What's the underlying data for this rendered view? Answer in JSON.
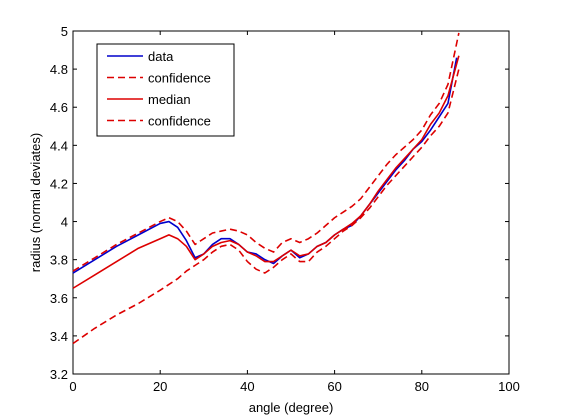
{
  "chart_data": {
    "type": "line",
    "title": "",
    "xlabel": "angle (degree)",
    "ylabel": "radius (normal deviates)",
    "xlim": [
      0,
      100
    ],
    "ylim": [
      3.2,
      5
    ],
    "xticks": [
      0,
      20,
      40,
      60,
      80,
      100
    ],
    "yticks": [
      3.2,
      3.4,
      3.6,
      3.8,
      4,
      4.2,
      4.4,
      4.6,
      4.8,
      5
    ],
    "xtick_labels": [
      "0",
      "20",
      "40",
      "60",
      "80",
      "100"
    ],
    "ytick_labels": [
      "3.2",
      "3.4",
      "3.6",
      "3.8",
      "4",
      "4.2",
      "4.4",
      "4.6",
      "4.8",
      "5"
    ],
    "grid": false,
    "legend_position": "top-left",
    "series": [
      {
        "name": "data",
        "color": "#0000cc",
        "style": "solid",
        "x": [
          0,
          5,
          10,
          15,
          20,
          22,
          24,
          26,
          28,
          30,
          32,
          34,
          36,
          38,
          40,
          42,
          44,
          46,
          48,
          50,
          52,
          54,
          56,
          58,
          60,
          62,
          64,
          66,
          68,
          70,
          72,
          74,
          76,
          78,
          80,
          82,
          84,
          86,
          88
        ],
        "y": [
          3.73,
          3.8,
          3.87,
          3.93,
          3.99,
          4.0,
          3.97,
          3.9,
          3.81,
          3.83,
          3.88,
          3.91,
          3.91,
          3.88,
          3.84,
          3.83,
          3.8,
          3.78,
          3.82,
          3.85,
          3.81,
          3.83,
          3.87,
          3.89,
          3.93,
          3.96,
          3.98,
          4.03,
          4.09,
          4.15,
          4.21,
          4.27,
          4.32,
          4.38,
          4.42,
          4.48,
          4.55,
          4.62,
          4.86
        ]
      },
      {
        "name": "confidence",
        "color": "#dd0000",
        "style": "dashed",
        "x": [
          0,
          5,
          10,
          15,
          20,
          22,
          24,
          26,
          28,
          30,
          32,
          34,
          36,
          38,
          40,
          42,
          44,
          46,
          48,
          50,
          52,
          54,
          56,
          58,
          60,
          62,
          64,
          66,
          68,
          70,
          72,
          74,
          76,
          78,
          80,
          82,
          84,
          86,
          88.5
        ],
        "y": [
          3.74,
          3.81,
          3.88,
          3.94,
          4.0,
          4.02,
          4.0,
          3.95,
          3.88,
          3.91,
          3.94,
          3.95,
          3.96,
          3.95,
          3.93,
          3.89,
          3.86,
          3.84,
          3.89,
          3.91,
          3.89,
          3.91,
          3.94,
          3.98,
          4.02,
          4.05,
          4.08,
          4.12,
          4.18,
          4.24,
          4.3,
          4.35,
          4.39,
          4.43,
          4.48,
          4.56,
          4.62,
          4.72,
          4.99
        ]
      },
      {
        "name": "median",
        "color": "#dd0000",
        "style": "solid",
        "x": [
          0,
          5,
          10,
          15,
          20,
          22,
          24,
          26,
          28,
          30,
          32,
          34,
          36,
          38,
          40,
          42,
          44,
          46,
          48,
          50,
          52,
          54,
          56,
          58,
          60,
          62,
          64,
          66,
          68,
          70,
          72,
          74,
          76,
          78,
          80,
          82,
          84,
          86,
          88.5
        ],
        "y": [
          3.65,
          3.72,
          3.79,
          3.86,
          3.91,
          3.93,
          3.91,
          3.87,
          3.8,
          3.83,
          3.87,
          3.89,
          3.9,
          3.88,
          3.84,
          3.82,
          3.79,
          3.79,
          3.82,
          3.85,
          3.82,
          3.83,
          3.87,
          3.89,
          3.93,
          3.96,
          3.99,
          4.03,
          4.09,
          4.16,
          4.22,
          4.28,
          4.33,
          4.38,
          4.43,
          4.51,
          4.57,
          4.66,
          4.87
        ]
      },
      {
        "name": "confidence",
        "color": "#dd0000",
        "style": "dashed",
        "x": [
          0,
          5,
          10,
          15,
          20,
          22,
          24,
          26,
          28,
          30,
          32,
          34,
          36,
          38,
          40,
          42,
          44,
          46,
          48,
          50,
          52,
          54,
          56,
          58,
          60,
          62,
          64,
          66,
          68,
          70,
          72,
          74,
          76,
          78,
          80,
          82,
          84,
          86,
          88.5
        ],
        "y": [
          3.36,
          3.44,
          3.51,
          3.57,
          3.64,
          3.67,
          3.7,
          3.74,
          3.77,
          3.8,
          3.84,
          3.87,
          3.88,
          3.85,
          3.79,
          3.75,
          3.73,
          3.76,
          3.8,
          3.83,
          3.79,
          3.79,
          3.84,
          3.87,
          3.91,
          3.95,
          3.98,
          4.02,
          4.07,
          4.13,
          4.19,
          4.24,
          4.29,
          4.34,
          4.39,
          4.45,
          4.5,
          4.57,
          4.8
        ]
      }
    ]
  }
}
